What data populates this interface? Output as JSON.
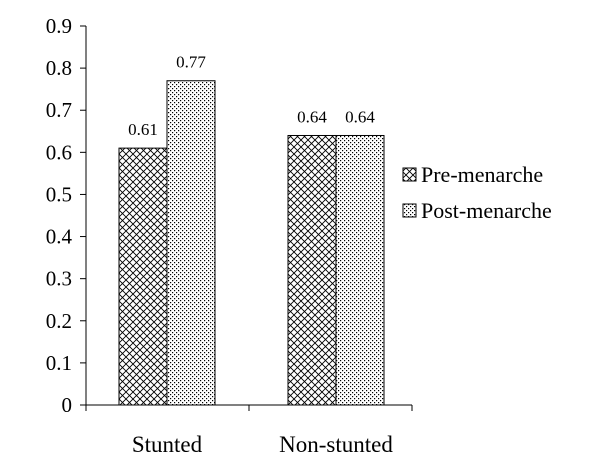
{
  "chart_data": {
    "type": "bar",
    "title": "",
    "xlabel": "",
    "ylabel": "",
    "categories": [
      "Stunted",
      "Non-stunted"
    ],
    "series": [
      {
        "name": "Pre-menarche",
        "values": [
          0.61,
          0.64
        ],
        "data_labels": [
          "0.61",
          "0.64"
        ],
        "pattern": "crosshatch"
      },
      {
        "name": "Post-menarche",
        "values": [
          0.77,
          0.64
        ],
        "data_labels": [
          "0.77",
          "0.64"
        ],
        "pattern": "dots"
      }
    ],
    "ylim": [
      0,
      0.9
    ],
    "yticks": [
      0,
      0.1,
      0.2,
      0.3,
      0.4,
      0.5,
      0.6,
      0.7,
      0.8,
      0.9
    ],
    "ytick_labels": [
      "0",
      "0.1",
      "0.2",
      "0.3",
      "0.4",
      "0.5",
      "0.6",
      "0.7",
      "0.8",
      "0.9"
    ],
    "grid": false,
    "legend_position": "right",
    "colors": {
      "stroke": "#000000",
      "background": "#ffffff"
    }
  }
}
